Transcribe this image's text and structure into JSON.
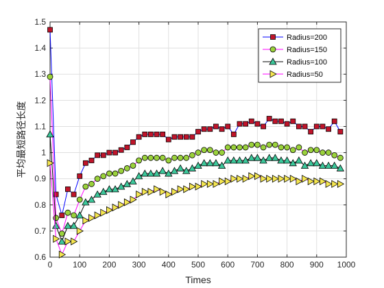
{
  "chart_data": {
    "type": "line",
    "title": "",
    "xlabel": "Times",
    "ylabel": "平均最短路径长度",
    "xlim": [
      0,
      1000
    ],
    "ylim": [
      0.6,
      1.5
    ],
    "xticks": [
      "0",
      "100",
      "200",
      "300",
      "400",
      "500",
      "600",
      "700",
      "800",
      "900",
      "1000"
    ],
    "yticks": [
      "0.6",
      "0.7",
      "0.8",
      "0.9",
      "1",
      "1.1",
      "1.2",
      "1.3",
      "1.4",
      "1.5"
    ],
    "grid": true,
    "legend_position": "top-right",
    "x": [
      0,
      20,
      40,
      60,
      80,
      100,
      120,
      140,
      160,
      180,
      200,
      220,
      240,
      260,
      280,
      300,
      320,
      340,
      360,
      380,
      400,
      420,
      440,
      460,
      480,
      500,
      520,
      540,
      560,
      580,
      600,
      620,
      640,
      660,
      680,
      700,
      720,
      740,
      760,
      780,
      800,
      820,
      840,
      860,
      880,
      900,
      920,
      940,
      960,
      980
    ],
    "series": [
      {
        "name": "Radius=200",
        "line_color": "#0000ff",
        "marker": "square",
        "marker_color": "#c0142a",
        "values": [
          1.47,
          0.84,
          0.76,
          0.86,
          0.84,
          0.91,
          0.96,
          0.97,
          0.99,
          0.99,
          1.0,
          1.0,
          1.01,
          1.02,
          1.04,
          1.06,
          1.07,
          1.07,
          1.07,
          1.07,
          1.05,
          1.06,
          1.06,
          1.06,
          1.06,
          1.08,
          1.09,
          1.09,
          1.1,
          1.09,
          1.1,
          1.07,
          1.11,
          1.11,
          1.12,
          1.11,
          1.1,
          1.13,
          1.12,
          1.12,
          1.11,
          1.12,
          1.1,
          1.1,
          1.08,
          1.1,
          1.1,
          1.09,
          1.12,
          1.08
        ]
      },
      {
        "name": "Radius=150",
        "line_color": "#ff00ff",
        "marker": "circle",
        "marker_color": "#9bd23c",
        "values": [
          1.29,
          0.75,
          0.69,
          0.77,
          0.76,
          0.82,
          0.87,
          0.88,
          0.9,
          0.91,
          0.92,
          0.92,
          0.93,
          0.94,
          0.95,
          0.97,
          0.98,
          0.98,
          0.98,
          0.98,
          0.97,
          0.98,
          0.98,
          0.98,
          0.99,
          1.0,
          1.01,
          1.01,
          1.0,
          1.0,
          1.02,
          1.02,
          1.02,
          1.02,
          1.03,
          1.03,
          1.02,
          1.03,
          1.03,
          1.02,
          1.02,
          1.01,
          1.02,
          1.0,
          1.01,
          1.01,
          1.0,
          1.0,
          0.99,
          0.98
        ]
      },
      {
        "name": "Radius=100",
        "line_color": "#000000",
        "marker": "triangle",
        "marker_color": "#3cc89b",
        "values": [
          1.07,
          0.72,
          0.66,
          0.72,
          0.72,
          0.76,
          0.81,
          0.82,
          0.84,
          0.85,
          0.86,
          0.86,
          0.87,
          0.88,
          0.89,
          0.91,
          0.92,
          0.92,
          0.92,
          0.93,
          0.92,
          0.93,
          0.94,
          0.93,
          0.94,
          0.95,
          0.96,
          0.96,
          0.96,
          0.95,
          0.97,
          0.97,
          0.97,
          0.97,
          0.98,
          0.98,
          0.97,
          0.98,
          0.98,
          0.97,
          0.97,
          0.96,
          0.97,
          0.95,
          0.96,
          0.96,
          0.95,
          0.95,
          0.95,
          0.94
        ]
      },
      {
        "name": "Radius=50",
        "line_color": "#ff00ff",
        "marker": "triangle-right",
        "marker_color": "#f5e650",
        "values": [
          0.96,
          0.67,
          0.61,
          0.66,
          0.66,
          0.7,
          0.74,
          0.75,
          0.76,
          0.77,
          0.78,
          0.79,
          0.8,
          0.81,
          0.82,
          0.84,
          0.85,
          0.85,
          0.86,
          0.85,
          0.84,
          0.85,
          0.86,
          0.86,
          0.87,
          0.87,
          0.88,
          0.88,
          0.88,
          0.89,
          0.89,
          0.9,
          0.9,
          0.9,
          0.91,
          0.91,
          0.9,
          0.9,
          0.9,
          0.9,
          0.9,
          0.9,
          0.89,
          0.9,
          0.89,
          0.89,
          0.89,
          0.88,
          0.88,
          0.88
        ]
      }
    ]
  }
}
